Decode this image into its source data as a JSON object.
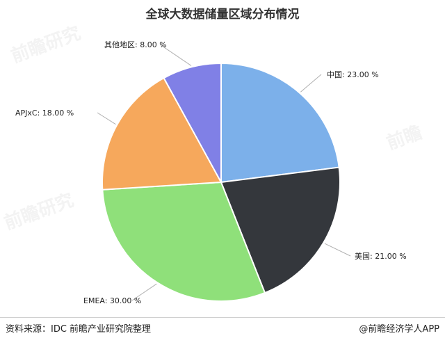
{
  "chart_data": {
    "type": "pie",
    "title": "全球大数据储量区域分布情况",
    "unit": "%",
    "slices": [
      {
        "label": "中国",
        "value": 23.0,
        "text": "中国: 23.00 %",
        "color": "#7cb0ea"
      },
      {
        "label": "美国",
        "value": 21.0,
        "text": "美国: 21.00 %",
        "color": "#34373c"
      },
      {
        "label": "EMEA",
        "value": 30.0,
        "text": "EMEA: 30.00 %",
        "color": "#8fe07a"
      },
      {
        "label": "APJxC",
        "value": 18.0,
        "text": "APJxC: 18.00 %",
        "color": "#f6a85c"
      },
      {
        "label": "其他地区",
        "value": 8.0,
        "text": "其他地区: 8.00 %",
        "color": "#8080e6"
      }
    ],
    "legend": "none",
    "start_angle": "12 o'clock, clockwise"
  },
  "footer": {
    "source": "资料来源：IDC 前瞻产业研究院整理",
    "brand": "@前瞻经济学人APP"
  }
}
